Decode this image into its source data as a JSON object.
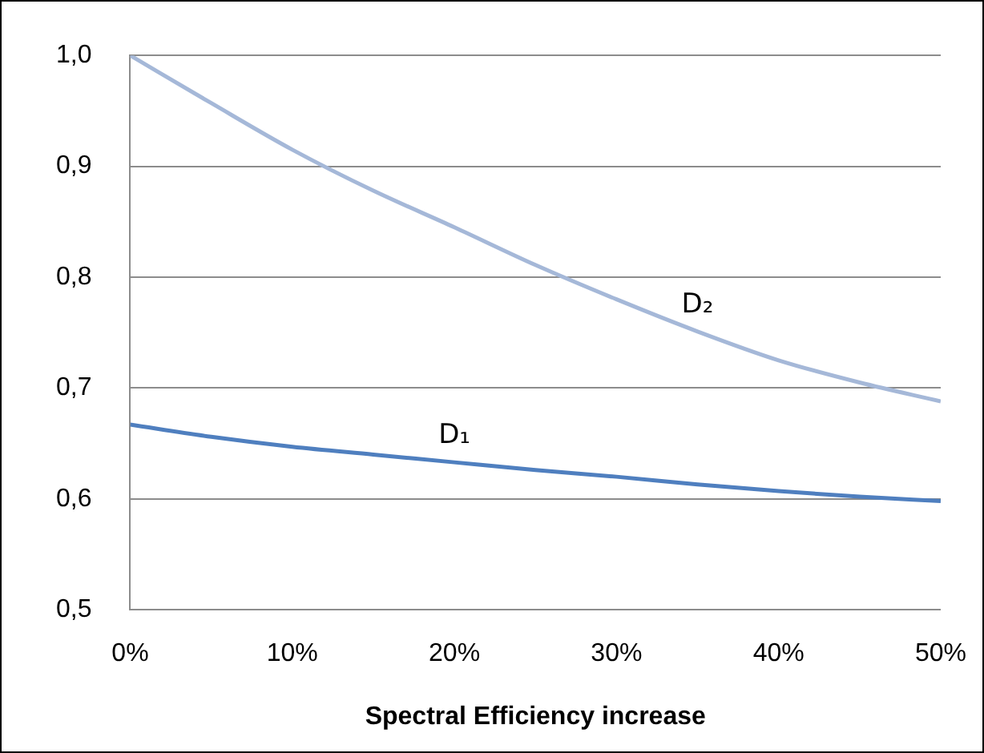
{
  "chart_data": {
    "type": "line",
    "xlabel": "Spectral Efficiency increase",
    "x": [
      0,
      5,
      10,
      15,
      20,
      25,
      30,
      35,
      40,
      45,
      50
    ],
    "series": [
      {
        "name": "D₂",
        "color": "#a5b8d8",
        "values": [
          1.0,
          0.957,
          0.915,
          0.878,
          0.845,
          0.811,
          0.78,
          0.751,
          0.725,
          0.705,
          0.688
        ]
      },
      {
        "name": "D₁",
        "color": "#4f7fbf",
        "values": [
          0.667,
          0.656,
          0.647,
          0.64,
          0.633,
          0.626,
          0.62,
          0.613,
          0.607,
          0.602,
          0.598
        ]
      }
    ],
    "xlim": [
      0,
      50
    ],
    "xticks": [
      {
        "value": 0,
        "label": "0%"
      },
      {
        "value": 10,
        "label": "10%"
      },
      {
        "value": 20,
        "label": "20%"
      },
      {
        "value": 30,
        "label": "30%"
      },
      {
        "value": 40,
        "label": "40%"
      },
      {
        "value": 50,
        "label": "50%"
      }
    ],
    "ylim": [
      0.5,
      1.0
    ],
    "yticks": [
      {
        "value": 0.5,
        "label": "0,5"
      },
      {
        "value": 0.6,
        "label": "0,6"
      },
      {
        "value": 0.7,
        "label": "0,7"
      },
      {
        "value": 0.8,
        "label": "0,8"
      },
      {
        "value": 0.9,
        "label": "0,9"
      },
      {
        "value": 1.0,
        "label": "1,0"
      }
    ],
    "grid": "y",
    "legend": false,
    "marker": "none",
    "line_style": "solid"
  }
}
